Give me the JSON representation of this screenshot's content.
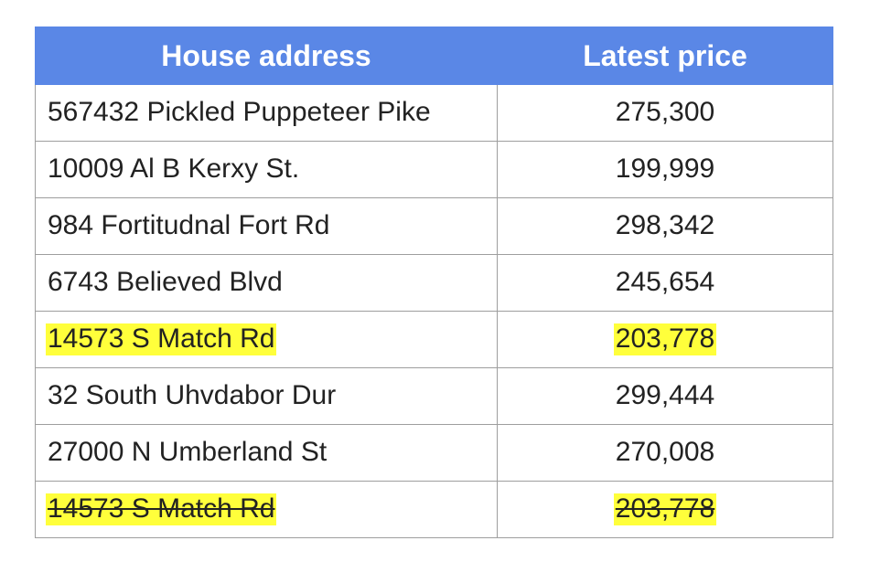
{
  "table": {
    "headers": {
      "address": "House address",
      "price": "Latest price"
    },
    "rows": [
      {
        "address": "567432 Pickled Puppeteer Pike",
        "price": "275,300",
        "highlighted": false,
        "struck": false
      },
      {
        "address": "10009 Al B Kerxy St.",
        "price": "199,999",
        "highlighted": false,
        "struck": false
      },
      {
        "address": "984 Fortitudnal Fort Rd",
        "price": "298,342",
        "highlighted": false,
        "struck": false
      },
      {
        "address": "6743 Believed Blvd",
        "price": "245,654",
        "highlighted": false,
        "struck": false
      },
      {
        "address": "14573 S Match Rd",
        "price": "203,778",
        "highlighted": true,
        "struck": false
      },
      {
        "address": "32 South Uhvdabor Dur",
        "price": "299,444",
        "highlighted": false,
        "struck": false
      },
      {
        "address": "27000 N Umberland St",
        "price": "270,008",
        "highlighted": false,
        "struck": false
      },
      {
        "address": "14573 S Match Rd",
        "price": "203,778",
        "highlighted": true,
        "struck": true
      }
    ]
  },
  "colors": {
    "header_background": "#5a87e6",
    "highlight": "#ffff3b"
  }
}
